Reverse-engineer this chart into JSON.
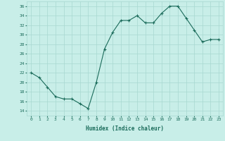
{
  "x": [
    0,
    1,
    2,
    3,
    4,
    5,
    6,
    7,
    8,
    9,
    10,
    11,
    12,
    13,
    14,
    15,
    16,
    17,
    18,
    19,
    20,
    21,
    22,
    23
  ],
  "y": [
    22,
    21,
    19,
    17,
    16.5,
    16.5,
    15.5,
    14.5,
    20,
    27,
    30.5,
    33,
    33,
    34,
    32.5,
    32.5,
    34.5,
    36,
    36,
    33.5,
    31,
    28.5,
    29,
    29
  ],
  "line_color": "#1a6b5a",
  "marker": "+",
  "bg_color": "#c8eee8",
  "grid_color": "#a8d8d0",
  "xlabel": "Humidex (Indice chaleur)",
  "ylim": [
    13,
    37
  ],
  "yticks": [
    14,
    16,
    18,
    20,
    22,
    24,
    26,
    28,
    30,
    32,
    34,
    36
  ],
  "xticks": [
    0,
    1,
    2,
    3,
    4,
    5,
    6,
    7,
    8,
    9,
    10,
    11,
    12,
    13,
    14,
    15,
    16,
    17,
    18,
    19,
    20,
    21,
    22,
    23
  ],
  "font_color": "#1a6b5a"
}
